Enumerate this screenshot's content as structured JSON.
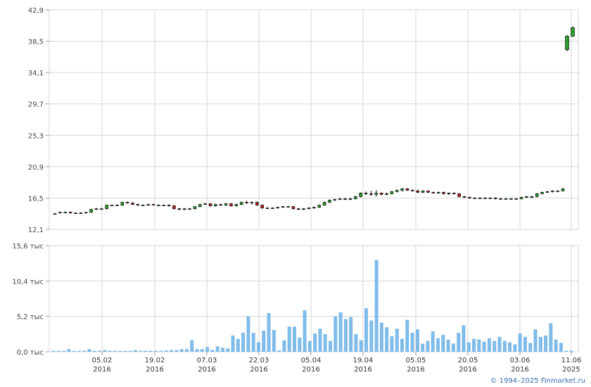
{
  "chart_data": [
    {
      "type": "candlestick",
      "panel": "price",
      "ylim": [
        12.1,
        42.9
      ],
      "y_ticks": [
        "42,9",
        "38,5",
        "34,1",
        "29,7",
        "25,3",
        "20,9",
        "16,5",
        "12,1"
      ],
      "grid": true,
      "colors": {
        "up": "#2e9e2e",
        "down": "#b32222",
        "wick": "#000000"
      },
      "x_labels": [
        {
          "date": "05.02",
          "year": "2016"
        },
        {
          "date": "19.02",
          "year": "2016"
        },
        {
          "date": "07.03",
          "year": "2016"
        },
        {
          "date": "22.03",
          "year": "2016"
        },
        {
          "date": "05.04",
          "year": "2016"
        },
        {
          "date": "19.04",
          "year": "2016"
        },
        {
          "date": "05.05",
          "year": "2016"
        },
        {
          "date": "20.05",
          "year": "2016"
        },
        {
          "date": "03.06",
          "year": "2016"
        },
        {
          "date": "11.06",
          "year": "2025"
        }
      ],
      "candles": [
        [
          14.3,
          14.4,
          14.2,
          14.3
        ],
        [
          14.4,
          14.6,
          14.3,
          14.5
        ],
        [
          14.5,
          14.6,
          14.4,
          14.5
        ],
        [
          14.5,
          14.6,
          14.3,
          14.4
        ],
        [
          14.4,
          14.5,
          14.3,
          14.4
        ],
        [
          14.4,
          14.5,
          14.3,
          14.4
        ],
        [
          14.4,
          14.5,
          14.3,
          14.5
        ],
        [
          14.5,
          15.0,
          14.4,
          14.9
        ],
        [
          14.9,
          15.1,
          14.8,
          15.0
        ],
        [
          15.0,
          15.1,
          14.9,
          15.0
        ],
        [
          15.0,
          15.6,
          14.9,
          15.5
        ],
        [
          15.5,
          15.6,
          15.4,
          15.5
        ],
        [
          15.5,
          15.6,
          15.4,
          15.5
        ],
        [
          15.5,
          16.0,
          15.4,
          15.9
        ],
        [
          15.9,
          16.0,
          15.7,
          15.8
        ],
        [
          15.8,
          15.9,
          15.5,
          15.6
        ],
        [
          15.6,
          15.7,
          15.4,
          15.5
        ],
        [
          15.5,
          15.6,
          15.4,
          15.5
        ],
        [
          15.5,
          15.7,
          15.4,
          15.6
        ],
        [
          15.6,
          15.7,
          15.5,
          15.5
        ],
        [
          15.5,
          15.6,
          15.4,
          15.5
        ],
        [
          15.5,
          15.6,
          15.4,
          15.5
        ],
        [
          15.5,
          15.6,
          15.3,
          15.4
        ],
        [
          15.4,
          15.5,
          14.9,
          15.0
        ],
        [
          15.0,
          15.1,
          14.8,
          14.9
        ],
        [
          14.9,
          15.1,
          14.8,
          15.0
        ],
        [
          15.0,
          15.1,
          14.9,
          15.0
        ],
        [
          15.0,
          15.4,
          14.9,
          15.3
        ],
        [
          15.3,
          15.7,
          15.2,
          15.6
        ],
        [
          15.6,
          15.8,
          15.5,
          15.7
        ],
        [
          15.7,
          15.8,
          15.3,
          15.4
        ],
        [
          15.4,
          15.7,
          15.3,
          15.6
        ],
        [
          15.6,
          15.7,
          15.4,
          15.5
        ],
        [
          15.5,
          15.8,
          15.4,
          15.7
        ],
        [
          15.7,
          15.8,
          15.3,
          15.4
        ],
        [
          15.4,
          15.7,
          15.3,
          15.6
        ],
        [
          15.6,
          16.0,
          15.5,
          15.9
        ],
        [
          15.9,
          16.1,
          15.7,
          15.8
        ],
        [
          15.8,
          16.0,
          15.6,
          15.9
        ],
        [
          15.9,
          16.0,
          15.4,
          15.5
        ],
        [
          15.5,
          15.6,
          15.0,
          15.1
        ],
        [
          15.1,
          15.2,
          15.0,
          15.1
        ],
        [
          15.1,
          15.2,
          15.0,
          15.1
        ],
        [
          15.1,
          15.3,
          15.0,
          15.2
        ],
        [
          15.2,
          15.4,
          15.1,
          15.3
        ],
        [
          15.3,
          15.4,
          15.2,
          15.3
        ],
        [
          15.3,
          15.4,
          14.9,
          15.0
        ],
        [
          15.0,
          15.1,
          14.8,
          14.9
        ],
        [
          14.9,
          15.1,
          14.8,
          15.0
        ],
        [
          15.0,
          15.2,
          14.9,
          15.1
        ],
        [
          15.1,
          15.3,
          15.0,
          15.2
        ],
        [
          15.2,
          15.6,
          15.1,
          15.5
        ],
        [
          15.5,
          16.0,
          15.4,
          15.9
        ],
        [
          15.9,
          16.3,
          15.8,
          16.2
        ],
        [
          16.2,
          16.4,
          16.1,
          16.3
        ],
        [
          16.3,
          16.5,
          16.2,
          16.4
        ],
        [
          16.4,
          16.5,
          16.2,
          16.3
        ],
        [
          16.3,
          16.5,
          16.2,
          16.4
        ],
        [
          16.4,
          16.8,
          16.3,
          16.7
        ],
        [
          16.7,
          17.3,
          16.6,
          17.2
        ],
        [
          17.2,
          17.4,
          16.9,
          17.1
        ],
        [
          17.1,
          17.5,
          16.8,
          17.0
        ],
        [
          17.0,
          17.6,
          16.7,
          17.2
        ],
        [
          17.2,
          17.3,
          16.9,
          17.0
        ],
        [
          17.0,
          17.3,
          16.9,
          17.1
        ],
        [
          17.1,
          17.5,
          17.0,
          17.4
        ],
        [
          17.4,
          17.7,
          17.3,
          17.6
        ],
        [
          17.6,
          17.9,
          17.4,
          17.8
        ],
        [
          17.8,
          17.9,
          17.5,
          17.6
        ],
        [
          17.6,
          17.7,
          17.4,
          17.5
        ],
        [
          17.5,
          17.7,
          17.2,
          17.3
        ],
        [
          17.3,
          17.6,
          17.2,
          17.5
        ],
        [
          17.5,
          17.6,
          17.2,
          17.3
        ],
        [
          17.3,
          17.4,
          17.1,
          17.2
        ],
        [
          17.2,
          17.4,
          17.1,
          17.3
        ],
        [
          17.3,
          17.4,
          17.0,
          17.1
        ],
        [
          17.1,
          17.3,
          16.9,
          17.2
        ],
        [
          17.2,
          17.3,
          17.0,
          17.1
        ],
        [
          17.1,
          17.2,
          16.6,
          16.7
        ],
        [
          16.7,
          16.8,
          16.5,
          16.6
        ],
        [
          16.6,
          16.7,
          16.4,
          16.5
        ],
        [
          16.5,
          16.6,
          16.4,
          16.5
        ],
        [
          16.5,
          16.6,
          16.4,
          16.5
        ],
        [
          16.5,
          16.6,
          16.4,
          16.5
        ],
        [
          16.5,
          16.6,
          16.4,
          16.5
        ],
        [
          16.5,
          16.6,
          16.3,
          16.4
        ],
        [
          16.4,
          16.5,
          16.3,
          16.4
        ],
        [
          16.4,
          16.5,
          16.3,
          16.4
        ],
        [
          16.4,
          16.5,
          16.3,
          16.4
        ],
        [
          16.4,
          16.5,
          16.3,
          16.4
        ],
        [
          16.4,
          16.7,
          16.3,
          16.6
        ],
        [
          16.6,
          16.8,
          16.5,
          16.7
        ],
        [
          16.7,
          16.8,
          16.5,
          16.7
        ],
        [
          16.7,
          17.2,
          16.6,
          17.1
        ],
        [
          17.1,
          17.4,
          17.0,
          17.3
        ],
        [
          17.3,
          17.5,
          17.2,
          17.4
        ],
        [
          17.4,
          17.6,
          17.3,
          17.5
        ],
        [
          17.5,
          17.6,
          17.4,
          17.5
        ],
        [
          17.5,
          17.9,
          17.4,
          17.8
        ],
        [
          37.3,
          39.4,
          37.1,
          39.2
        ],
        [
          39.2,
          40.6,
          39.1,
          40.4
        ]
      ]
    },
    {
      "type": "bar",
      "panel": "volume",
      "ylim": [
        0,
        15600
      ],
      "y_ticks": [
        "15,6 тыс",
        "10,4 тыс",
        "5,2 тыс",
        "0,0 тыс"
      ],
      "color": "#7fbcea",
      "values": [
        150,
        150,
        150,
        400,
        150,
        150,
        150,
        400,
        150,
        150,
        250,
        150,
        150,
        150,
        150,
        150,
        250,
        150,
        150,
        150,
        150,
        150,
        200,
        250,
        250,
        400,
        400,
        1700,
        400,
        400,
        700,
        300,
        800,
        600,
        500,
        2400,
        1900,
        2800,
        5200,
        2800,
        1400,
        3100,
        5700,
        3200,
        200,
        1700,
        3700,
        3700,
        2100,
        6100,
        1600,
        2700,
        3400,
        2600,
        1600,
        5200,
        5800,
        4800,
        5100,
        2600,
        1700,
        6400,
        4600,
        13500,
        4300,
        3600,
        2300,
        3400,
        1900,
        4700,
        2800,
        3300,
        1200,
        1600,
        3000,
        2000,
        2500,
        1800,
        1200,
        2800,
        3900,
        1400,
        1900,
        1800,
        1500,
        2000,
        1600,
        2200,
        1600,
        1400,
        1100,
        2700,
        2200,
        1300,
        3300,
        2200,
        2400,
        4200,
        1800,
        1300,
        150,
        150
      ]
    }
  ],
  "copyright": "© 1994–2025 Finmarket.ru"
}
